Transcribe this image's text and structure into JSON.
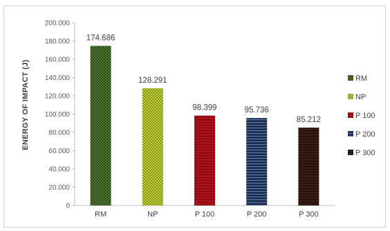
{
  "chart_data": {
    "type": "bar",
    "title": "",
    "xlabel": "",
    "ylabel": "ENERGY OF IMPACT (J)",
    "ylim": [
      0,
      200
    ],
    "yticks": [
      "0",
      "20.000",
      "40.000",
      "60.000",
      "80.000",
      "100.000",
      "120.000",
      "140.000",
      "160.000",
      "180.000",
      "200.000"
    ],
    "categories": [
      "RM",
      "NP",
      "P 100",
      "P 200",
      "P 300"
    ],
    "values": [
      174.686,
      128.291,
      98.399,
      95.736,
      85.212
    ],
    "data_labels": [
      "174.686",
      "128.291",
      "98.399",
      "95.736",
      "85.212"
    ],
    "grid": false,
    "legend_position": "right",
    "legend": [
      "RM",
      "NP",
      "P 100",
      "P 200",
      "P 300"
    ],
    "colors": [
      "#4f7a2e",
      "#c8d63a",
      "#b0101a",
      "#1c2a48",
      "#3a1d10"
    ],
    "pattern_colors": [
      "#2e4a18",
      "#7d8e1c",
      "#7a0a12",
      "#5a7ab0",
      "#1a0c05"
    ]
  }
}
